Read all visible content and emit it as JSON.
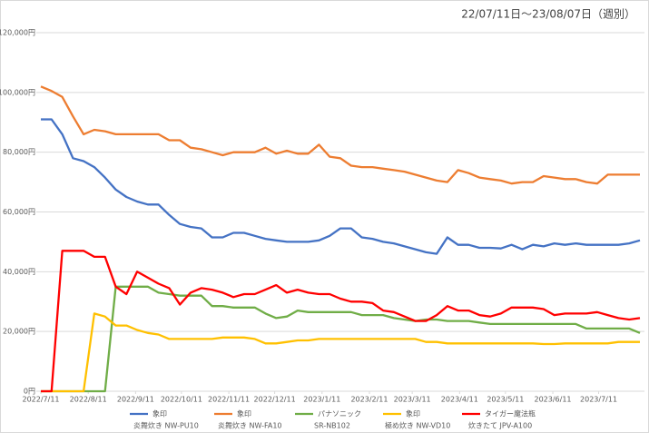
{
  "chart_data": {
    "type": "line",
    "subtitle": "22/07/11日～23/08/07日（週別）",
    "x": [
      "2022-07-11",
      "2022-07-18",
      "2022-07-25",
      "2022-08-01",
      "2022-08-08",
      "2022-08-15",
      "2022-08-22",
      "2022-08-29",
      "2022-09-05",
      "2022-09-12",
      "2022-09-19",
      "2022-09-26",
      "2022-10-03",
      "2022-10-10",
      "2022-10-17",
      "2022-10-24",
      "2022-10-31",
      "2022-11-07",
      "2022-11-14",
      "2022-11-21",
      "2022-11-28",
      "2022-12-05",
      "2022-12-12",
      "2022-12-19",
      "2022-12-26",
      "2023-01-02",
      "2023-01-09",
      "2023-01-16",
      "2023-01-23",
      "2023-01-30",
      "2023-02-06",
      "2023-02-13",
      "2023-02-20",
      "2023-02-27",
      "2023-03-06",
      "2023-03-13",
      "2023-03-20",
      "2023-03-27",
      "2023-04-03",
      "2023-04-10",
      "2023-04-17",
      "2023-04-24",
      "2023-05-01",
      "2023-05-08",
      "2023-05-15",
      "2023-05-22",
      "2023-05-29",
      "2023-06-05",
      "2023-06-12",
      "2023-06-19",
      "2023-06-26",
      "2023-07-03",
      "2023-07-10",
      "2023-07-17",
      "2023-07-24",
      "2023-07-31",
      "2023-08-07"
    ],
    "xlim": [
      "2022-07-11",
      "2023-08-07"
    ],
    "xticks": [
      {
        "value": "2022-07-11",
        "label": "2022/7/11"
      },
      {
        "value": "2022-08-11",
        "label": "2022/8/11"
      },
      {
        "value": "2022-09-11",
        "label": "2022/9/11"
      },
      {
        "value": "2022-10-11",
        "label": "2022/10/11"
      },
      {
        "value": "2022-11-11",
        "label": "2022/11/11"
      },
      {
        "value": "2022-12-11",
        "label": "2022/12/11"
      },
      {
        "value": "2023-01-11",
        "label": "2023/1/11"
      },
      {
        "value": "2023-02-11",
        "label": "2023/2/11"
      },
      {
        "value": "2023-03-11",
        "label": "2023/3/11"
      },
      {
        "value": "2023-04-11",
        "label": "2023/4/11"
      },
      {
        "value": "2023-05-11",
        "label": "2023/5/11"
      },
      {
        "value": "2023-06-11",
        "label": "2023/6/11"
      },
      {
        "value": "2023-07-11",
        "label": "2023/7/11"
      }
    ],
    "ylim": [
      0,
      120000
    ],
    "yticks": [
      {
        "value": 0,
        "label": "0円"
      },
      {
        "value": 20000,
        "label": "20,000円"
      },
      {
        "value": 40000,
        "label": "40,000円"
      },
      {
        "value": 60000,
        "label": "60,000円"
      },
      {
        "value": 80000,
        "label": "80,000円"
      },
      {
        "value": 100000,
        "label": "100,000円"
      },
      {
        "value": 120000,
        "label": "120,000円"
      }
    ],
    "grid": true,
    "legend": "bottom",
    "series": [
      {
        "name": "象印",
        "model": "炎舞炊き NW-PU10",
        "color": "#4472c4",
        "values": [
          91000,
          91000,
          86000,
          78000,
          77000,
          75000,
          71500,
          67500,
          65000,
          63500,
          62500,
          62500,
          59000,
          56000,
          55000,
          54500,
          51500,
          51500,
          53000,
          53000,
          52000,
          51000,
          50500,
          50000,
          50000,
          50000,
          50500,
          52000,
          54500,
          54500,
          51500,
          51000,
          50000,
          49500,
          48500,
          47500,
          46500,
          46000,
          51500,
          49000,
          49000,
          48000,
          48000,
          47800,
          49000,
          47500,
          49000,
          48500,
          49500,
          49000,
          49500,
          49000,
          49000,
          49000,
          49000,
          49500,
          50500
        ]
      },
      {
        "name": "象印",
        "model": "炎舞炊き NW-FA10",
        "color": "#ed7d31",
        "values": [
          102000,
          100500,
          98500,
          92000,
          86000,
          87500,
          87000,
          86000,
          86000,
          86000,
          86000,
          86000,
          84000,
          84000,
          81500,
          81000,
          80000,
          79000,
          80000,
          80000,
          80000,
          81500,
          79500,
          80500,
          79500,
          79500,
          82500,
          78500,
          78000,
          75500,
          75000,
          75000,
          74500,
          74000,
          73500,
          72500,
          71500,
          70500,
          70000,
          74000,
          73000,
          71500,
          71000,
          70500,
          69500,
          70000,
          70000,
          72000,
          71500,
          71000,
          71000,
          70000,
          69500,
          72500,
          72500,
          72500,
          72500
        ]
      },
      {
        "name": "パナソニック",
        "model": "SR-NB102",
        "color": "#70ad47",
        "values": [
          0,
          0,
          0,
          0,
          0,
          0,
          0,
          35000,
          35000,
          35000,
          35000,
          33000,
          32500,
          32000,
          32000,
          32000,
          28500,
          28500,
          28000,
          28000,
          28000,
          26000,
          24500,
          25000,
          27000,
          26500,
          26500,
          26500,
          26500,
          26500,
          25500,
          25500,
          25500,
          24500,
          24000,
          23500,
          24000,
          24000,
          23500,
          23500,
          23500,
          23000,
          22500,
          22500,
          22500,
          22500,
          22500,
          22500,
          22500,
          22500,
          22500,
          21000,
          21000,
          21000,
          21000,
          21000,
          19500
        ]
      },
      {
        "name": "象印",
        "model": "極め炊き NW-VD10",
        "color": "#ffc000",
        "values": [
          0,
          0,
          0,
          0,
          0,
          26000,
          25000,
          22000,
          22000,
          20500,
          19500,
          19000,
          17500,
          17500,
          17500,
          17500,
          17500,
          18000,
          18000,
          18000,
          17500,
          16000,
          16000,
          16500,
          17000,
          17000,
          17500,
          17500,
          17500,
          17500,
          17500,
          17500,
          17500,
          17500,
          17500,
          17500,
          16500,
          16500,
          16000,
          16000,
          16000,
          16000,
          16000,
          16000,
          16000,
          16000,
          16000,
          15800,
          15800,
          16000,
          16000,
          16000,
          16000,
          16000,
          16500,
          16500,
          16500
        ]
      },
      {
        "name": "タイガー魔法瓶",
        "model": "炊きたて JPV-A100",
        "color": "#ff0000",
        "values": [
          0,
          0,
          47000,
          47000,
          47000,
          45000,
          45000,
          35000,
          32500,
          40000,
          38000,
          36000,
          34500,
          29000,
          33000,
          34500,
          34000,
          33000,
          31500,
          32500,
          32500,
          34000,
          35500,
          33000,
          34000,
          33000,
          32500,
          32500,
          31000,
          30000,
          30000,
          29500,
          27000,
          26500,
          25000,
          23500,
          23500,
          25500,
          28500,
          27000,
          27000,
          25500,
          25000,
          26000,
          28000,
          28000,
          28000,
          27500,
          25500,
          26000,
          26000,
          26000,
          26500,
          25500,
          24500,
          24000,
          24500
        ]
      }
    ]
  }
}
